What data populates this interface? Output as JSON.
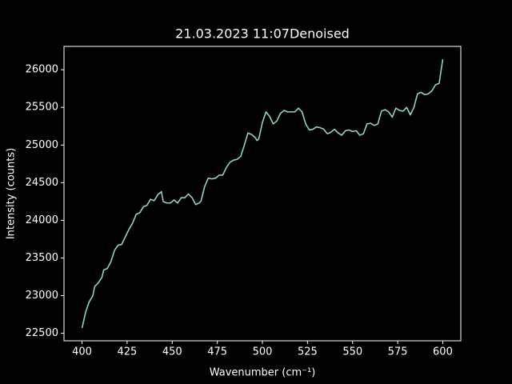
{
  "chart_data": {
    "type": "line",
    "title": "21.03.2023 11:07Denoised",
    "xlabel": "Wavenumber (cm⁻¹)",
    "ylabel": "Intensity (counts)",
    "color": "#8dd3c7",
    "x": [
      400,
      402,
      404,
      406,
      407,
      409,
      411,
      412,
      414,
      416,
      418,
      420,
      422,
      424,
      426,
      428,
      430,
      432,
      434,
      436,
      438,
      440,
      442,
      444,
      445,
      447,
      449,
      451,
      453,
      455,
      457,
      459,
      461,
      463,
      465,
      466,
      468,
      470,
      472,
      474,
      476,
      478,
      480,
      482,
      484,
      486,
      488,
      490,
      492,
      494,
      496,
      497,
      498,
      500,
      502,
      504,
      506,
      508,
      510,
      512,
      514,
      516,
      518,
      520,
      522,
      524,
      526,
      528,
      530,
      532,
      534,
      536,
      538,
      540,
      542,
      544,
      546,
      548,
      550,
      552,
      554,
      556,
      558,
      560,
      562,
      564,
      566,
      568,
      570,
      572,
      574,
      576,
      578,
      580,
      582,
      584,
      586,
      588,
      590,
      592,
      594,
      596,
      598,
      600
    ],
    "values": [
      22570,
      22780,
      22920,
      23000,
      23120,
      23170,
      23240,
      23340,
      23360,
      23450,
      23600,
      23670,
      23680,
      23780,
      23880,
      23960,
      24080,
      24100,
      24180,
      24200,
      24280,
      24260,
      24340,
      24380,
      24250,
      24230,
      24230,
      24270,
      24230,
      24300,
      24300,
      24350,
      24300,
      24210,
      24230,
      24260,
      24450,
      24560,
      24550,
      24560,
      24600,
      24600,
      24700,
      24770,
      24800,
      24810,
      24850,
      25000,
      25160,
      25140,
      25100,
      25060,
      25080,
      25300,
      25440,
      25380,
      25280,
      25320,
      25420,
      25460,
      25440,
      25440,
      25440,
      25490,
      25440,
      25280,
      25200,
      25210,
      25240,
      25230,
      25210,
      25150,
      25170,
      25210,
      25160,
      25130,
      25190,
      25200,
      25180,
      25190,
      25130,
      25150,
      25280,
      25290,
      25260,
      25280,
      25450,
      25470,
      25440,
      25370,
      25490,
      25460,
      25450,
      25500,
      25400,
      25500,
      25680,
      25700,
      25670,
      25680,
      25720,
      25800,
      25820,
      26140
    ],
    "xlim": [
      390,
      610
    ],
    "ylim": [
      22400,
      26310
    ],
    "xticks": [
      400,
      425,
      450,
      475,
      500,
      525,
      550,
      575,
      600
    ],
    "yticks": [
      22500,
      23000,
      23500,
      24000,
      24500,
      25000,
      25500,
      26000
    ]
  }
}
